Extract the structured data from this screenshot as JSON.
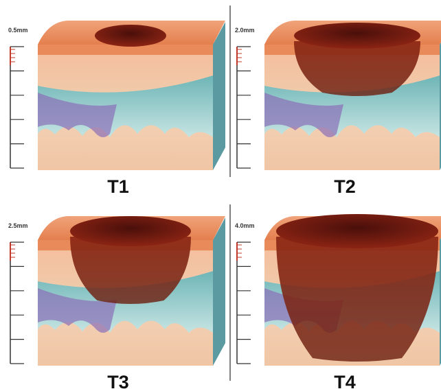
{
  "panels": [
    {
      "depth": "0.5mm",
      "label": "T1"
    },
    {
      "depth": "2.0mm",
      "label": "T2"
    },
    {
      "depth": "2.5mm",
      "label": "T3"
    },
    {
      "depth": "4.0mm",
      "label": "T4"
    }
  ]
}
